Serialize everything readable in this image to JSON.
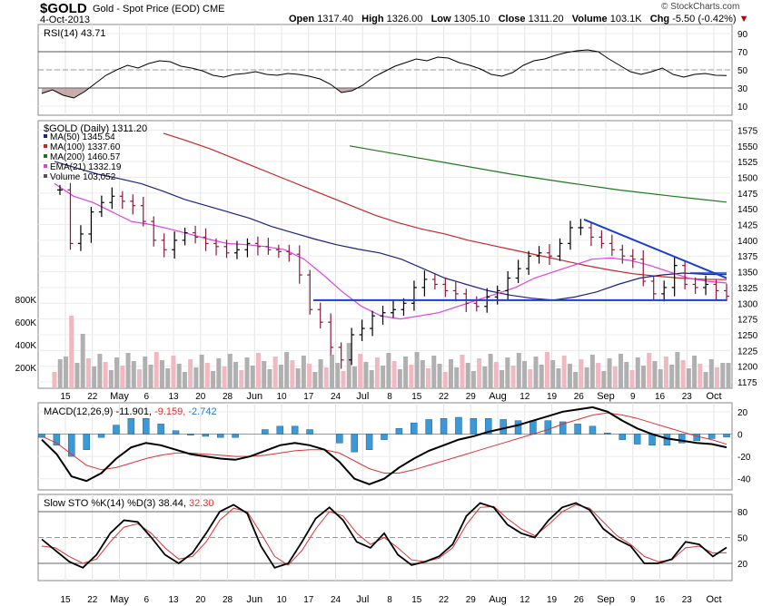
{
  "header": {
    "symbol": "$GOLD",
    "description": "Gold - Spot Price (EOD)",
    "exchange": "CME",
    "date": "4-Oct-2013",
    "open_label": "Open",
    "open": "1317.40",
    "high_label": "High",
    "high": "1326.00",
    "low_label": "Low",
    "low": "1305.10",
    "close_label": "Close",
    "close": "1311.20",
    "volume_label": "Volume",
    "volume": "103.1K",
    "chg_label": "Chg",
    "chg": "-5.50 (-0.42%)",
    "copyright": "© StockCharts.com"
  },
  "colors": {
    "ma50": "#1a237e",
    "ma100": "#c62828",
    "ma200": "#1b7a1b",
    "ema21": "#e040e0",
    "up_bar": "#000000",
    "down_bar": "#8b1a3a",
    "vol_up": "#b0b0b0",
    "vol_down": "#f0b8c0",
    "macd_hist": "#3a9ad9",
    "trendline": "#1a3fd0"
  },
  "chart_data": [
    {
      "type": "line",
      "title": "RSI(14) 43.71",
      "label": "RSI(14)",
      "value": "43.71",
      "yticks": [
        "90",
        "70",
        "50",
        "30",
        "10"
      ],
      "ylim": [
        0,
        100
      ],
      "reference_lines": [
        70,
        50,
        30
      ],
      "series": [
        {
          "values": [
            24,
            28,
            22,
            19,
            26,
            35,
            44,
            50,
            55,
            52,
            57,
            60,
            59,
            54,
            52,
            49,
            44,
            42,
            45,
            46,
            48,
            45,
            44,
            46,
            45,
            43,
            40,
            34,
            25,
            27,
            33,
            42,
            48,
            54,
            58,
            62,
            60,
            64,
            63,
            58,
            55,
            51,
            45,
            43,
            47,
            55,
            60,
            62,
            66,
            69,
            71,
            72,
            70,
            62,
            55,
            48,
            45,
            48,
            52,
            45,
            42,
            45,
            46,
            44,
            43.71
          ]
        }
      ]
    },
    {
      "type": "line",
      "title": "$GOLD (Daily) 1311.20",
      "label": "$GOLD (Daily)",
      "value": "1311.20",
      "legend": [
        {
          "name": "MA(50)",
          "value": "1345.54"
        },
        {
          "name": "MA(100)",
          "value": "1337.60"
        },
        {
          "name": "MA(200)",
          "value": "1460.57"
        },
        {
          "name": "EMA(21)",
          "value": "1332.19"
        },
        {
          "name": "Volume",
          "value": "103,052"
        }
      ],
      "yticks": [
        "1575",
        "1550",
        "1525",
        "1500",
        "1475",
        "1450",
        "1425",
        "1400",
        "1375",
        "1350",
        "1325",
        "1300",
        "1275",
        "1250",
        "1225",
        "1200",
        "1175"
      ],
      "ylim": [
        1165,
        1590
      ],
      "volume_ticks": [
        "800K",
        "600K",
        "400K",
        "200K"
      ],
      "x_ticks": [
        "15",
        "22",
        "May",
        "6",
        "13",
        "20",
        "28",
        "Jun",
        "10",
        "17",
        "24",
        "Jul",
        "8",
        "15",
        "22",
        "29",
        "Aug",
        "12",
        "19",
        "26",
        "Sep",
        "9",
        "16",
        "23",
        "Oct"
      ],
      "series": [
        {
          "name": "Price",
          "values": [
            1480,
            1395,
            1410,
            1445,
            1460,
            1470,
            1462,
            1455,
            1430,
            1400,
            1385,
            1400,
            1412,
            1405,
            1395,
            1390,
            1380,
            1385,
            1395,
            1390,
            1385,
            1382,
            1378,
            1345,
            1290,
            1270,
            1230,
            1210,
            1250,
            1260,
            1280,
            1285,
            1290,
            1300,
            1325,
            1338,
            1330,
            1320,
            1315,
            1300,
            1295,
            1310,
            1320,
            1340,
            1355,
            1375,
            1380,
            1375,
            1395,
            1420,
            1420,
            1405,
            1395,
            1385,
            1375,
            1370,
            1335,
            1315,
            1325,
            1360,
            1330,
            1325,
            1330,
            1320,
            1311.2
          ]
        },
        {
          "name": "MA(50)",
          "values": [
            1525,
            1515,
            1505,
            1498,
            1490,
            1478,
            1465,
            1455,
            1445,
            1435,
            1422,
            1412,
            1402,
            1393,
            1386,
            1380,
            1370,
            1355,
            1340,
            1330,
            1320,
            1313,
            1308,
            1305,
            1310,
            1318,
            1330,
            1340,
            1345,
            1348,
            1346,
            1345.54
          ]
        },
        {
          "name": "MA(100)",
          "values": [
            1570,
            1558,
            1545,
            1530,
            1515,
            1500,
            1485,
            1470,
            1455,
            1440,
            1428,
            1418,
            1410,
            1400,
            1392,
            1384,
            1376,
            1368,
            1360,
            1353,
            1347,
            1343,
            1340,
            1338,
            1337.6
          ]
        },
        {
          "name": "MA(200)",
          "values": [
            1550,
            1535,
            1520,
            1505,
            1492,
            1480,
            1470,
            1460.57
          ]
        },
        {
          "name": "EMA(21)",
          "values": [
            1490,
            1470,
            1460,
            1445,
            1430,
            1425,
            1418,
            1410,
            1402,
            1395,
            1393,
            1390,
            1385,
            1370,
            1345,
            1318,
            1295,
            1280,
            1275,
            1280,
            1285,
            1295,
            1305,
            1315,
            1325,
            1340,
            1350,
            1360,
            1370,
            1372,
            1368,
            1360,
            1350,
            1340,
            1335,
            1332.19
          ]
        }
      ]
    },
    {
      "type": "bar",
      "title": "MACD(12,26,9) -11.901, -9.159, -2.742",
      "label": "MACD(12,26,9)",
      "values_text": [
        "-11.901",
        "-9.159",
        "-2.742"
      ],
      "yticks": [
        "20",
        "0",
        "-20",
        "-40"
      ],
      "ylim": [
        -50,
        28
      ],
      "series": [
        {
          "name": "MACD",
          "values": [
            -5,
            -18,
            -38,
            -42,
            -35,
            -22,
            -12,
            -8,
            -10,
            -14,
            -18,
            -20,
            -22,
            -23,
            -20,
            -15,
            -10,
            -8,
            -10,
            -14,
            -25,
            -40,
            -45,
            -40,
            -30,
            -22,
            -15,
            -10,
            -5,
            -2,
            2,
            5,
            8,
            12,
            16,
            20,
            22,
            24,
            20,
            12,
            5,
            0,
            -4,
            -6,
            -8,
            -9,
            -11.901
          ]
        },
        {
          "name": "Signal",
          "values": [
            -2,
            -8,
            -18,
            -28,
            -32,
            -30,
            -26,
            -22,
            -19,
            -17,
            -17,
            -18,
            -19,
            -20,
            -20,
            -19,
            -17,
            -15,
            -14,
            -14,
            -17,
            -24,
            -31,
            -35,
            -35,
            -32,
            -28,
            -24,
            -20,
            -16,
            -12,
            -8,
            -4,
            0,
            4,
            9,
            13,
            17,
            19,
            17,
            14,
            10,
            6,
            2,
            -2,
            -5,
            -9.159
          ]
        },
        {
          "name": "Histogram",
          "values": [
            -3,
            -10,
            -20,
            -14,
            -3,
            8,
            14,
            14,
            9,
            3,
            -1,
            -2,
            -3,
            -3,
            0,
            4,
            7,
            7,
            4,
            0,
            -8,
            -16,
            -14,
            -5,
            5,
            10,
            13,
            14,
            15,
            14,
            14,
            13,
            12,
            12,
            12,
            11,
            9,
            7,
            1,
            -5,
            -9,
            -10,
            -10,
            -8,
            -6,
            -4,
            -2.742
          ]
        }
      ]
    },
    {
      "type": "line",
      "title": "Slow STO %K(14) %D(3) 38.44, 32.30",
      "label": "Slow STO %K(14) %D(3)",
      "values_text": [
        "38.44",
        "32.30"
      ],
      "yticks": [
        "80",
        "50",
        "20"
      ],
      "ylim": [
        0,
        100
      ],
      "reference_lines": [
        80,
        20
      ],
      "series": [
        {
          "name": "%K(14)",
          "values": [
            48,
            35,
            22,
            15,
            30,
            55,
            70,
            68,
            50,
            30,
            20,
            32,
            55,
            80,
            88,
            78,
            40,
            15,
            20,
            45,
            72,
            85,
            70,
            45,
            38,
            55,
            30,
            18,
            22,
            28,
            42,
            75,
            90,
            85,
            65,
            55,
            50,
            70,
            85,
            90,
            82,
            60,
            48,
            40,
            20,
            20,
            25,
            45,
            42,
            28,
            38.44
          ]
        },
        {
          "name": "%D(3)",
          "values": [
            40,
            38,
            28,
            20,
            25,
            45,
            62,
            66,
            55,
            38,
            25,
            28,
            45,
            70,
            84,
            80,
            55,
            28,
            18,
            35,
            60,
            80,
            75,
            55,
            42,
            50,
            38,
            24,
            22,
            26,
            38,
            65,
            85,
            86,
            72,
            60,
            52,
            65,
            80,
            88,
            84,
            68,
            52,
            42,
            28,
            22,
            24,
            38,
            40,
            32,
            32.3
          ]
        }
      ]
    }
  ]
}
